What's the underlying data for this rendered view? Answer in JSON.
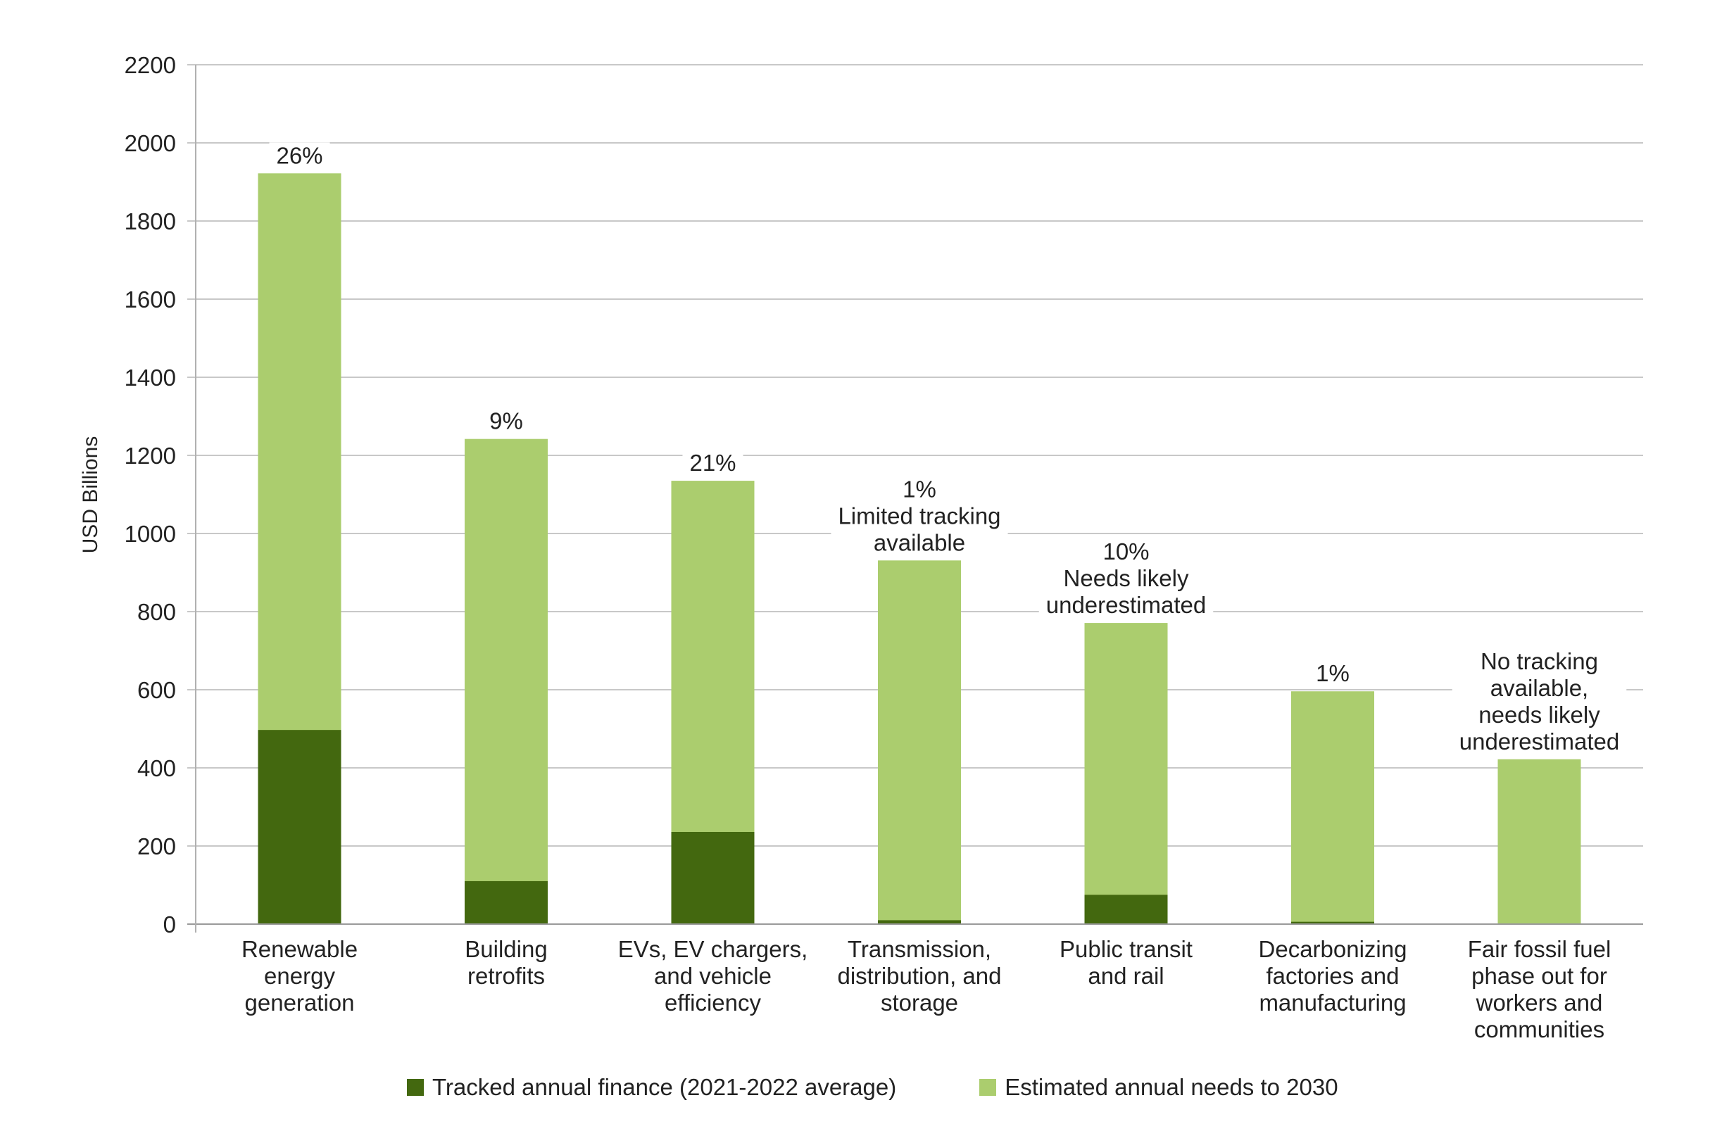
{
  "chart_data": {
    "type": "bar",
    "stacked": "overlay",
    "title": "",
    "xlabel": "",
    "ylabel": "USD Billions",
    "ylim": [
      0,
      2200
    ],
    "yticks": [
      0,
      200,
      400,
      600,
      800,
      1000,
      1200,
      1400,
      1600,
      1800,
      2000,
      2200
    ],
    "grid": true,
    "legend_position": "bottom",
    "categories": [
      [
        "Renewable",
        "energy",
        "generation"
      ],
      [
        "Building",
        "retrofits"
      ],
      [
        "EVs, EV chargers,",
        "and vehicle",
        "efficiency"
      ],
      [
        "Transmission,",
        "distribution, and",
        "storage"
      ],
      [
        "Public transit",
        "and rail"
      ],
      [
        "Decarbonizing",
        "factories and",
        "manufacturing"
      ],
      [
        "Fair fossil fuel",
        "phase out for",
        "workers and",
        "communities"
      ]
    ],
    "series": [
      {
        "name": "Tracked annual finance (2021-2022 average)",
        "color": "#43680F",
        "values": [
          497,
          110,
          236,
          10,
          75,
          6,
          0
        ]
      },
      {
        "name": "Estimated annual needs to 2030",
        "color": "#ABCD6E",
        "values": [
          1922,
          1242,
          1135,
          931,
          771,
          596,
          422
        ]
      }
    ],
    "annotations": [
      [
        "26%"
      ],
      [
        "9%"
      ],
      [
        "21%"
      ],
      [
        "1%",
        "Limited tracking",
        "available"
      ],
      [
        "10%",
        "Needs likely",
        "underestimated"
      ],
      [
        "1%"
      ],
      [
        "No tracking",
        "available,",
        "needs likely",
        "underestimated"
      ]
    ]
  },
  "legend": {
    "items": [
      {
        "label": "Tracked annual finance (2021-2022 average)",
        "color": "#43680F"
      },
      {
        "label": "Estimated annual needs to 2030",
        "color": "#ABCD6E"
      }
    ]
  }
}
